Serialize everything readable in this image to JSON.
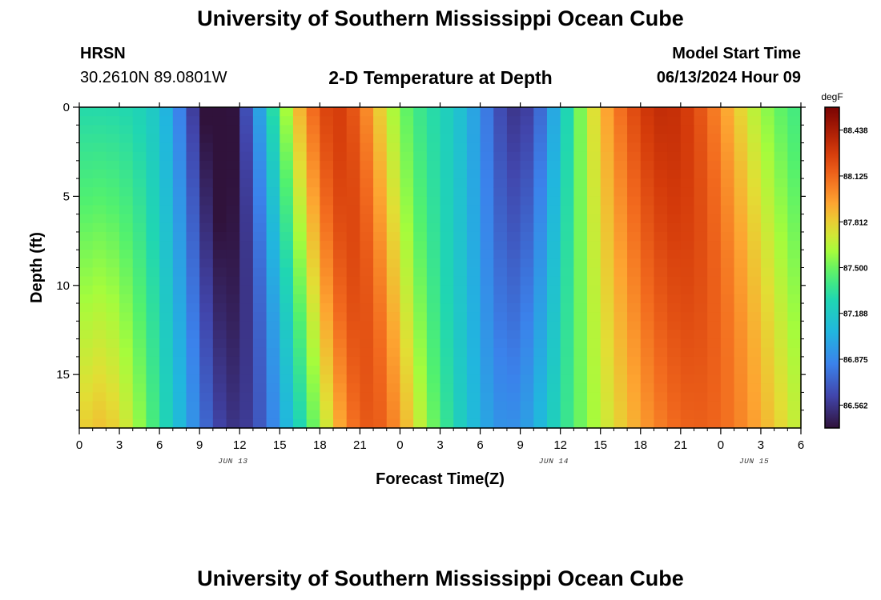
{
  "header": {
    "title": "University of Southern Mississippi Ocean Cube",
    "station_code": "HRSN",
    "station_coords": "30.2610N  89.0801W",
    "plot_title": "2-D Temperature at Depth",
    "model_start_label": "Model Start Time",
    "model_start_value": "06/13/2024 Hour 09"
  },
  "footer": {
    "title": "University of Southern Mississippi Ocean Cube"
  },
  "chart_data": {
    "type": "heatmap",
    "title": "2-D Temperature at Depth",
    "xlabel": "Forecast Time(Z)",
    "ylabel": "Depth (ft)",
    "xlim": [
      0,
      54
    ],
    "ylim": [
      18,
      0
    ],
    "x_tick_labels": [
      "0",
      "3",
      "6",
      "9",
      "12",
      "15",
      "18",
      "21",
      "0",
      "3",
      "6",
      "9",
      "12",
      "15",
      "18",
      "21",
      "0",
      "3",
      "6"
    ],
    "y_tick_values": [
      0,
      5,
      10,
      15
    ],
    "y_tick_labels": [
      "0",
      "5",
      "10",
      "15"
    ],
    "date_labels": [
      {
        "text": "JUN 13",
        "x": 11.5
      },
      {
        "text": "JUN 14",
        "x": 35.5
      },
      {
        "text": "JUN 15",
        "x": 50.5
      }
    ],
    "colorbar": {
      "unit": "degF",
      "min": 86.406,
      "max": 88.594,
      "tick_values": [
        86.562,
        86.875,
        87.188,
        87.5,
        87.812,
        88.125,
        88.438
      ],
      "tick_labels": [
        "86.562",
        "86.875",
        "87.188",
        "87.500",
        "87.812",
        "88.125",
        "88.438"
      ]
    },
    "grid_resolution": {
      "time_step_hours": 1,
      "depth_step_ft": 0.5
    },
    "features": [
      {
        "type": "cold_band",
        "center_hour": 10.5,
        "label": "minimum ~86.5 near surface"
      },
      {
        "type": "warm_band",
        "center_hour": 19.5,
        "label": "maximum ~88.5 at 3-6 ft"
      },
      {
        "type": "cold_band",
        "center_hour": 33.0,
        "label": "minimum ~86.7"
      },
      {
        "type": "warm_band",
        "center_hour": 43.5,
        "label": "maximum ~88.6"
      }
    ]
  }
}
